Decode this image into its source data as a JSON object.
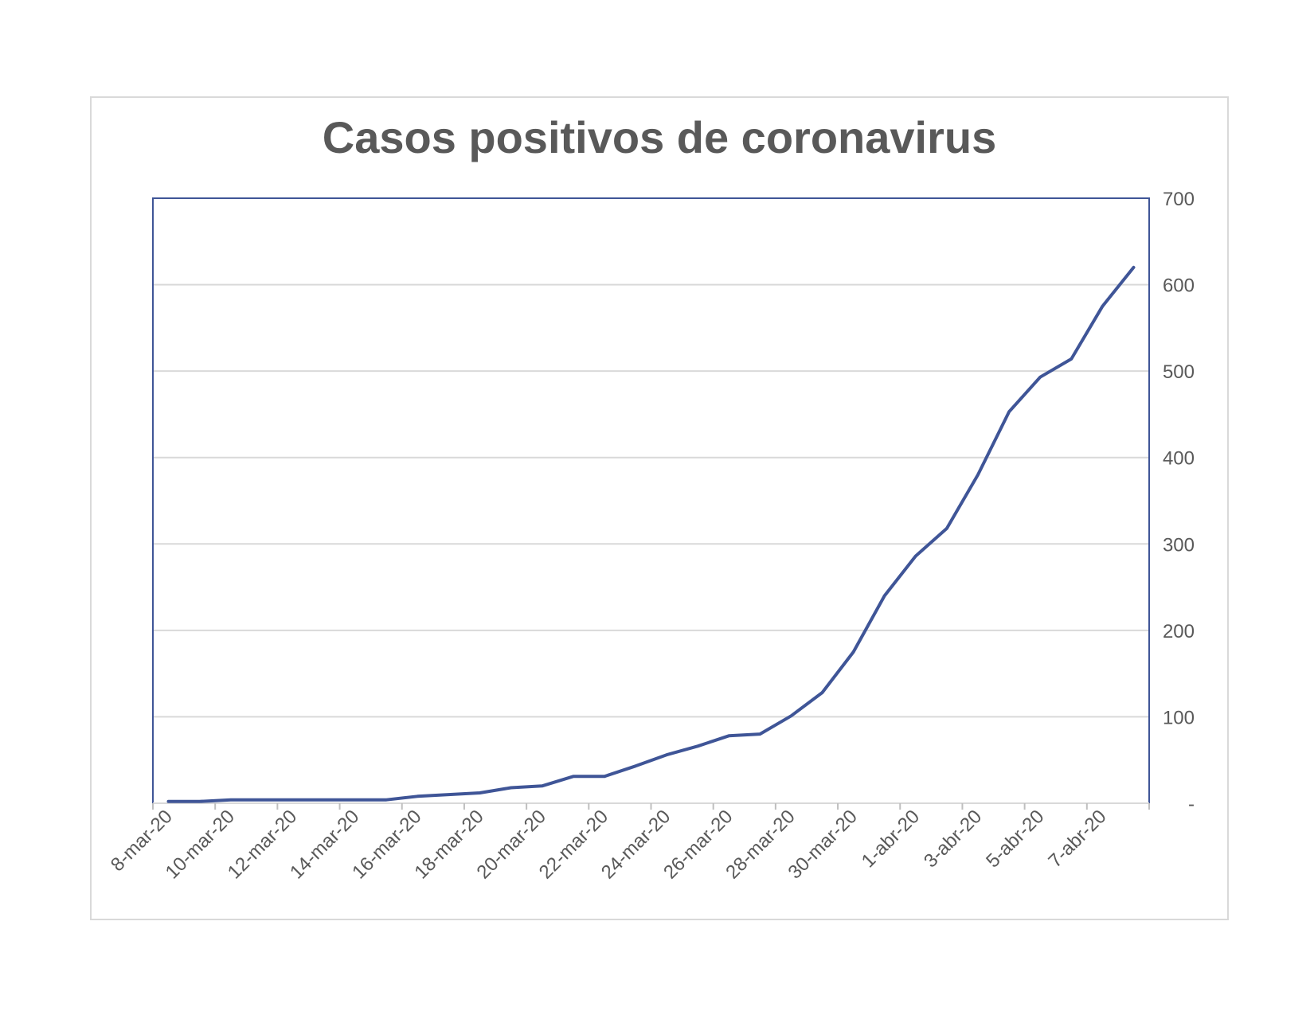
{
  "chart_data": {
    "type": "line",
    "title": "Casos positivos de coronavirus",
    "xlabel": "",
    "ylabel": "",
    "y_axis_position": "right",
    "ylim": [
      0,
      700
    ],
    "y_ticks": [
      0,
      100,
      200,
      300,
      400,
      500,
      600,
      700
    ],
    "y_tick_labels": [
      "-",
      "100",
      "200",
      "300",
      "400",
      "500",
      "600",
      "700"
    ],
    "x_tick_labels": [
      "8-mar-20",
      "10-mar-20",
      "12-mar-20",
      "14-mar-20",
      "16-mar-20",
      "18-mar-20",
      "20-mar-20",
      "22-mar-20",
      "24-mar-20",
      "26-mar-20",
      "28-mar-20",
      "30-mar-20",
      "1-abr-20",
      "3-abr-20",
      "5-abr-20",
      "7-abr-20"
    ],
    "grid": true,
    "legend": "none",
    "line_color": "#3f5597",
    "series": [
      {
        "x": [
          "8-mar-20",
          "9-mar-20",
          "10-mar-20",
          "11-mar-20",
          "12-mar-20",
          "13-mar-20",
          "14-mar-20",
          "15-mar-20",
          "16-mar-20",
          "17-mar-20",
          "18-mar-20",
          "19-mar-20",
          "20-mar-20",
          "21-mar-20",
          "22-mar-20",
          "23-mar-20",
          "24-mar-20",
          "25-mar-20",
          "26-mar-20",
          "27-mar-20",
          "28-mar-20",
          "29-mar-20",
          "30-mar-20",
          "31-mar-20",
          "1-abr-20",
          "2-abr-20",
          "3-abr-20",
          "4-abr-20",
          "5-abr-20",
          "6-abr-20",
          "7-abr-20",
          "8-abr-20"
        ],
        "values": [
          2,
          2,
          4,
          4,
          4,
          4,
          4,
          4,
          8,
          10,
          12,
          18,
          20,
          31,
          31,
          43,
          56,
          66,
          78,
          80,
          101,
          128,
          175,
          240,
          286,
          318,
          380,
          453,
          493,
          514,
          575,
          620
        ]
      }
    ]
  }
}
